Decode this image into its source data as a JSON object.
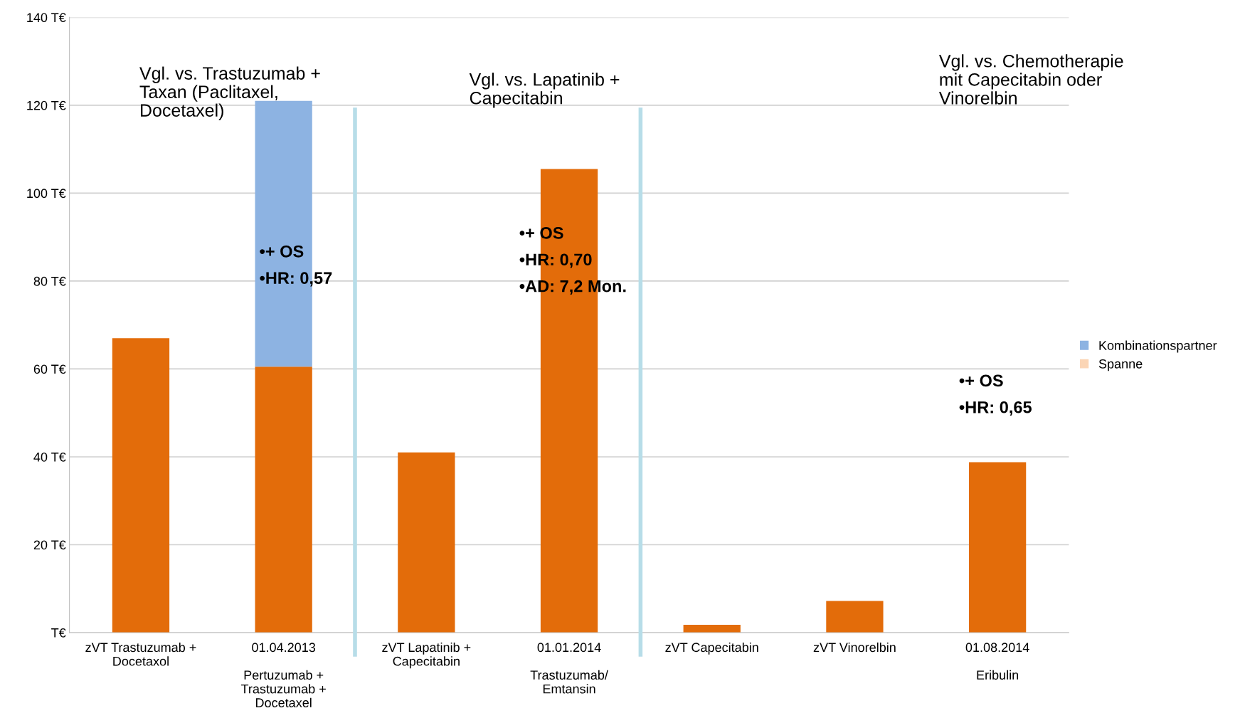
{
  "chart_data": {
    "type": "bar",
    "stacked": true,
    "categories": [
      "zVT Trastuzumab +\nDocetaxol",
      "01.04.2013\n\nPertuzumab +\nTrastuzumab +\nDocetaxel",
      "zVT Lapatinib +\nCapecitabin",
      "01.01.2014\n\nTrastuzumab/\nEmtansin",
      "zVT Capecitabin",
      "zVT Vinorelbin",
      "01.08.2014\n\nEribulin"
    ],
    "series": [
      {
        "color": "#e36c0a",
        "values": [
          67,
          60.5,
          41,
          105.5,
          1.8,
          7.2,
          38.8
        ]
      },
      {
        "name": "Kombinationspartner",
        "color": "#8db3e2",
        "values": [
          null,
          60.5,
          null,
          null,
          null,
          null,
          null
        ]
      },
      {
        "name": "Spanne",
        "color": "#fbd5b5",
        "values": [
          null,
          null,
          null,
          null,
          null,
          null,
          null
        ]
      }
    ],
    "ylim": [
      0,
      140
    ],
    "yticks": [
      {
        "value": 0,
        "label": "T€"
      },
      {
        "value": 20,
        "label": "20 T€"
      },
      {
        "value": 40,
        "label": "40 T€"
      },
      {
        "value": 60,
        "label": "60 T€"
      },
      {
        "value": 80,
        "label": "80 T€"
      },
      {
        "value": 100,
        "label": "100 T€"
      },
      {
        "value": 120,
        "label": "120 T€"
      },
      {
        "value": 140,
        "label": "140 T€"
      }
    ],
    "grid": "y",
    "legend": "right",
    "annotations": [
      "Vgl. vs. Trastuzumab +\nTaxan (Paclitaxel,\nDocetaxel)",
      "Vgl. vs. Lapatinib +\nCapecitabin",
      "Vgl. vs. Chemotherapie\nmit Capecitabin oder\nVinorelbin",
      "•+ OS\n•HR: 0,57",
      "•+ OS\n•HR: 0,70\n•AD: 7,2 Mon.",
      "•+ OS\n•HR: 0,65"
    ]
  }
}
